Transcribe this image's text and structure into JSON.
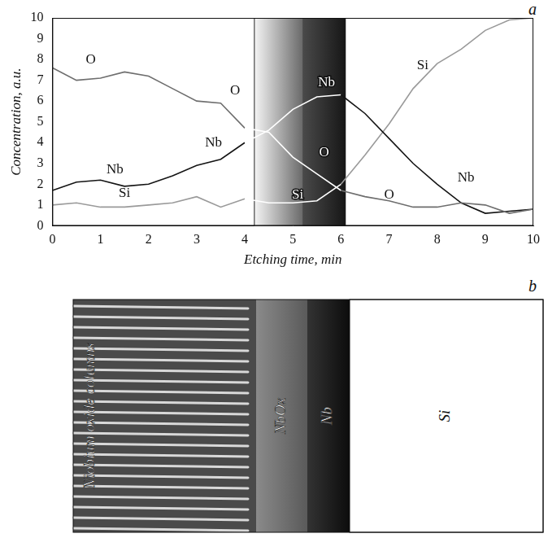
{
  "chart_data": {
    "panel": "a",
    "type": "line",
    "x_label": "Etching time, min",
    "y_label": "Concentration, a.u.",
    "x": [
      0,
      0.5,
      1,
      1.5,
      2,
      2.5,
      3,
      3.5,
      4,
      4.5,
      5,
      5.5,
      6,
      6.5,
      7,
      7.5,
      8,
      8.5,
      9,
      9.5,
      10
    ],
    "series": [
      {
        "name": "O",
        "color": "#6e6e6e",
        "values": [
          7.6,
          7.0,
          7.1,
          7.4,
          7.2,
          6.6,
          6.0,
          5.9,
          4.7,
          4.5,
          3.3,
          2.5,
          1.7,
          1.4,
          1.2,
          0.9,
          0.9,
          1.1,
          1.0,
          0.6,
          0.8
        ]
      },
      {
        "name": "Nb",
        "color": "#141414",
        "values": [
          1.7,
          2.1,
          2.2,
          1.9,
          2.0,
          2.4,
          2.9,
          3.2,
          4.0,
          4.6,
          5.6,
          6.2,
          6.3,
          5.4,
          4.2,
          3.0,
          2.0,
          1.1,
          0.6,
          0.7,
          0.8
        ]
      },
      {
        "name": "Si",
        "color": "#9a9a9a",
        "values": [
          1.0,
          1.1,
          0.9,
          0.9,
          1.0,
          1.1,
          1.4,
          0.9,
          1.3,
          1.1,
          1.1,
          1.2,
          2.0,
          3.4,
          4.9,
          6.6,
          7.8,
          8.5,
          9.4,
          9.9,
          10.0
        ]
      }
    ],
    "xlim": [
      0,
      10
    ],
    "xticks": [
      0,
      1,
      2,
      3,
      4,
      5,
      6,
      7,
      8,
      9,
      10
    ],
    "ylim": [
      0,
      10
    ],
    "yticks": [
      0,
      1,
      2,
      3,
      4,
      5,
      6,
      7,
      8,
      9,
      10
    ],
    "grid": false,
    "bands": [
      [
        4.2,
        5.2
      ],
      [
        5.2,
        6.1
      ]
    ],
    "annotations": [
      {
        "text": "O",
        "x": 0.8,
        "y": 8.0
      },
      {
        "text": "O",
        "x": 3.8,
        "y": 6.5
      },
      {
        "text": "O",
        "x": 5.65,
        "y": 3.5
      },
      {
        "text": "O",
        "x": 7.0,
        "y": 1.5
      },
      {
        "text": "Nb",
        "x": 1.3,
        "y": 2.7
      },
      {
        "text": "Nb",
        "x": 3.35,
        "y": 4.0
      },
      {
        "text": "Nb",
        "x": 5.7,
        "y": 6.9
      },
      {
        "text": "Nb",
        "x": 8.6,
        "y": 2.3
      },
      {
        "text": "Si",
        "x": 1.5,
        "y": 1.55
      },
      {
        "text": "Si",
        "x": 5.1,
        "y": 1.5
      },
      {
        "text": "Si",
        "x": 7.7,
        "y": 7.7
      }
    ]
  },
  "micrograph": {
    "panel": "b",
    "layers": [
      "Niobium oxide columns",
      "NbOx",
      "Nb",
      "Si"
    ]
  }
}
